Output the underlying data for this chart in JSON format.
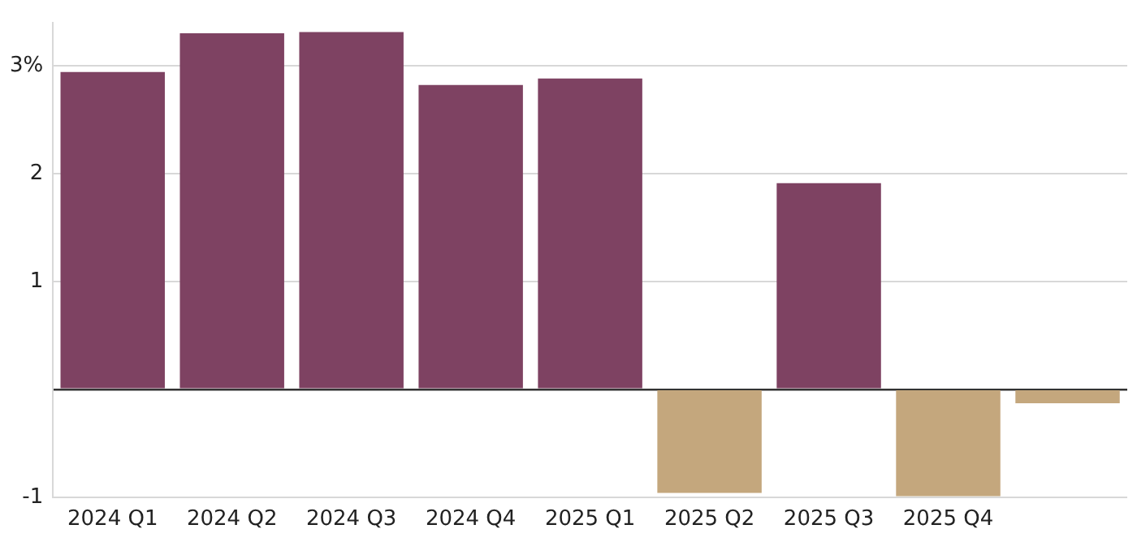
{
  "chart_data": {
    "type": "bar",
    "categories": [
      "2024 Q1",
      "2024 Q2",
      "2024 Q3",
      "2024 Q4",
      "2025 Q1",
      "2025 Q2",
      "2025 Q3",
      "2025 Q4",
      null
    ],
    "values": [
      2.94,
      3.3,
      3.31,
      2.82,
      2.88,
      -0.96,
      1.91,
      -0.99,
      -0.13
    ],
    "colors": [
      "#7e4262",
      "#7e4262",
      "#7e4262",
      "#7e4262",
      "#7e4262",
      "#c4a77d",
      "#7e4262",
      "#c4a77d",
      "#c4a77d"
    ],
    "ylim": [
      -1,
      3.4
    ],
    "yticks": [
      -1,
      {
        "value": 0,
        "label": null
      },
      1,
      2,
      {
        "value": 3,
        "label": "3%"
      }
    ],
    "grid": "y",
    "legend": false
  }
}
